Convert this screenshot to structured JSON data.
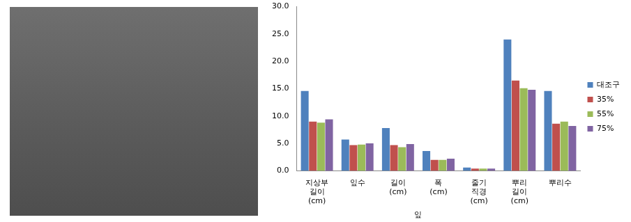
{
  "chart_data": {
    "type": "bar",
    "categories": [
      "지상부\n길이\n(cm)",
      "잎수",
      "길이\n(cm)",
      "폭\n(cm)",
      "줄기\n직경\n(cm)",
      "뿌리\n길이\n(cm)",
      "뿌리수"
    ],
    "category_groups": [
      {
        "label": "잎",
        "categories": [
          "길이\n(cm)",
          "폭\n(cm)"
        ]
      }
    ],
    "series": [
      {
        "name": "대조구",
        "color": "#4f81bd",
        "values": [
          14.6,
          5.7,
          7.8,
          3.6,
          0.6,
          24.0,
          14.6
        ]
      },
      {
        "name": "35%",
        "color": "#c0504d",
        "values": [
          9.0,
          4.7,
          4.7,
          2.0,
          0.4,
          16.5,
          8.6
        ]
      },
      {
        "name": "55%",
        "color": "#9bbb59",
        "values": [
          8.8,
          4.8,
          4.3,
          2.0,
          0.4,
          15.1,
          9.0
        ]
      },
      {
        "name": "75%",
        "color": "#8064a2",
        "values": [
          9.4,
          5.0,
          4.9,
          2.2,
          0.4,
          14.8,
          8.2
        ]
      }
    ],
    "ylim": [
      0,
      30
    ],
    "yticks": [
      {
        "value": 0,
        "label": "0.0"
      },
      {
        "value": 5,
        "label": "5.0"
      },
      {
        "value": 10,
        "label": "10.0"
      },
      {
        "value": 15,
        "label": "15.0"
      },
      {
        "value": 20,
        "label": "20.0"
      },
      {
        "value": 25,
        "label": "25.0"
      },
      {
        "value": 30,
        "label": "30.0"
      }
    ],
    "grid": false,
    "legend": "right"
  }
}
